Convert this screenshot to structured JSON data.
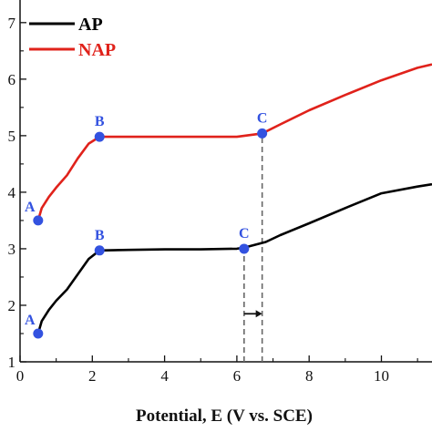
{
  "chart_data": {
    "type": "line",
    "title": "",
    "xlabel": "Potential, E (V vs. SCE)",
    "ylabel": "",
    "xlim": [
      0,
      11.4
    ],
    "ylim": [
      1,
      7.4
    ],
    "x_ticks": [
      0,
      2,
      4,
      6,
      8,
      10
    ],
    "y_ticks": [
      1,
      2,
      3,
      4,
      5,
      6,
      7
    ],
    "grid": false,
    "legend_position": "top-left",
    "series": [
      {
        "name": "AP",
        "color": "#000000",
        "points": [
          [
            0.5,
            1.5
          ],
          [
            0.6,
            1.72
          ],
          [
            0.8,
            1.92
          ],
          [
            1.0,
            2.08
          ],
          [
            1.3,
            2.28
          ],
          [
            1.6,
            2.55
          ],
          [
            1.9,
            2.82
          ],
          [
            2.2,
            2.97
          ],
          [
            3.0,
            2.98
          ],
          [
            4.0,
            2.99
          ],
          [
            5.0,
            2.99
          ],
          [
            6.0,
            3.0
          ],
          [
            6.2,
            3.02
          ],
          [
            6.8,
            3.12
          ],
          [
            7.2,
            3.24
          ],
          [
            8.0,
            3.45
          ],
          [
            9.0,
            3.72
          ],
          [
            10.0,
            3.98
          ],
          [
            11.0,
            4.1
          ],
          [
            11.4,
            4.14
          ]
        ]
      },
      {
        "name": "NAP",
        "color": "#e0221b",
        "points": [
          [
            0.5,
            3.5
          ],
          [
            0.6,
            3.72
          ],
          [
            0.8,
            3.92
          ],
          [
            1.0,
            4.08
          ],
          [
            1.3,
            4.3
          ],
          [
            1.6,
            4.6
          ],
          [
            1.9,
            4.86
          ],
          [
            2.2,
            4.98
          ],
          [
            3.0,
            4.98
          ],
          [
            4.0,
            4.98
          ],
          [
            5.0,
            4.98
          ],
          [
            6.0,
            4.98
          ],
          [
            6.7,
            5.04
          ],
          [
            7.2,
            5.2
          ],
          [
            8.0,
            5.45
          ],
          [
            9.0,
            5.72
          ],
          [
            10.0,
            5.98
          ],
          [
            11.0,
            6.2
          ],
          [
            11.4,
            6.26
          ]
        ]
      }
    ],
    "markers": [
      {
        "label": "A",
        "x": 0.5,
        "y": 1.5
      },
      {
        "label": "B",
        "x": 2.2,
        "y": 2.97
      },
      {
        "label": "C",
        "x": 6.2,
        "y": 3.0
      },
      {
        "label": "A",
        "x": 0.5,
        "y": 3.5
      },
      {
        "label": "B",
        "x": 2.2,
        "y": 4.98
      },
      {
        "label": "C",
        "x": 6.7,
        "y": 5.04
      }
    ],
    "marker_color": "#3352e0",
    "dashed_lines": [
      {
        "x": 6.2,
        "y_from": 1,
        "y_to": 3.0
      },
      {
        "x": 6.7,
        "y_from": 1,
        "y_to": 5.04
      }
    ],
    "shift_arrow": {
      "x_from": 6.2,
      "x_to": 6.7,
      "y": 1.85
    }
  }
}
